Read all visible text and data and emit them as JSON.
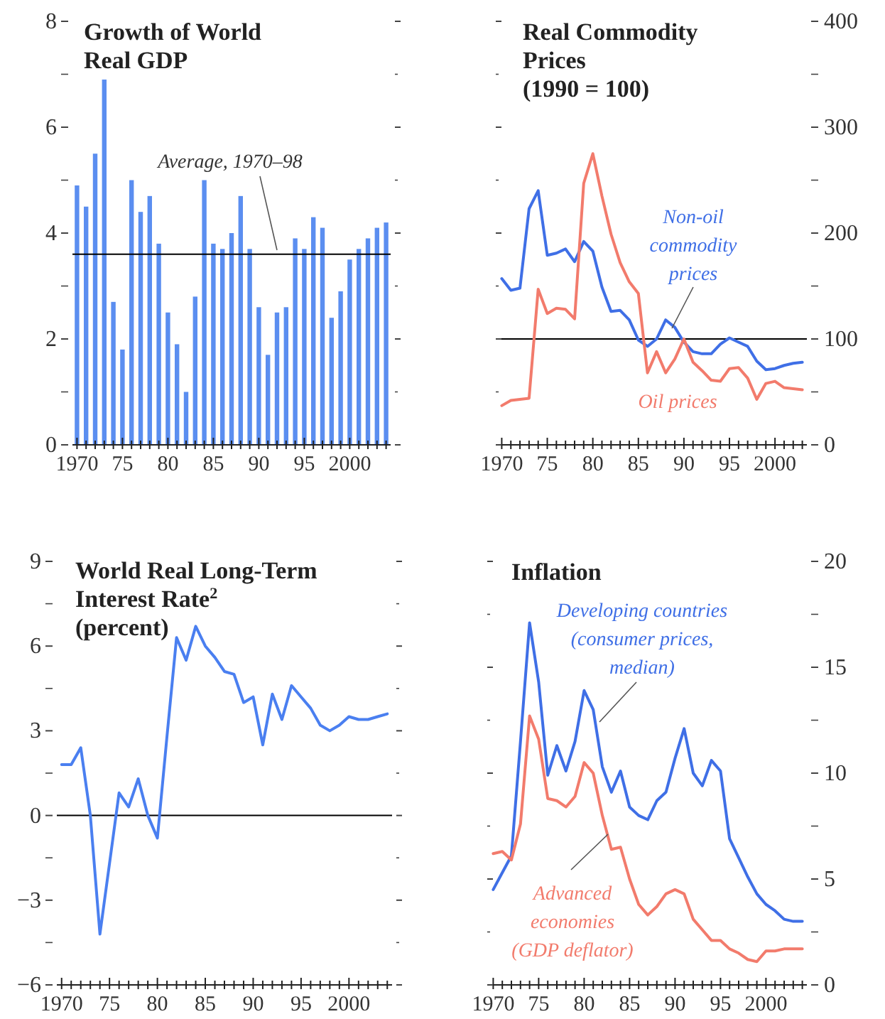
{
  "chart_data": [
    {
      "type": "bar",
      "title": "Growth of World Real GDP",
      "categories": [
        "1970",
        null,
        null,
        null,
        null,
        "75",
        null,
        null,
        null,
        null,
        "80",
        null,
        null,
        null,
        null,
        "85",
        null,
        null,
        null,
        null,
        "90",
        null,
        null,
        null,
        null,
        "95",
        null,
        null,
        null,
        null,
        "2000",
        null,
        null,
        null,
        null
      ],
      "values": [
        4.9,
        4.5,
        5.5,
        6.9,
        2.7,
        1.8,
        5.0,
        4.4,
        4.7,
        3.8,
        2.5,
        1.9,
        1.0,
        2.8,
        5.0,
        3.8,
        3.7,
        4.0,
        4.7,
        3.7,
        2.6,
        1.7,
        2.5,
        2.6,
        3.9,
        3.7,
        4.3,
        4.1,
        2.4,
        2.9,
        3.5,
        3.7,
        3.9,
        4.1,
        4.2
      ],
      "color": "#5b8ef0",
      "ylim": [
        0,
        8
      ],
      "yticks": [
        0,
        {
          "value": 1,
          "label": null
        },
        2,
        {
          "value": 3,
          "label": null
        },
        4,
        {
          "value": 5,
          "label": null
        },
        6,
        {
          "value": 7,
          "label": null
        },
        8
      ],
      "ref_lines": [
        {
          "axis": "y",
          "value": 3.6,
          "label": "Average, 1970–98"
        }
      ]
    },
    {
      "type": "line",
      "title": "Real Commodity Prices",
      "subtitle": "(1990 = 100)",
      "categories": [
        "1970",
        null,
        null,
        null,
        null,
        "75",
        null,
        null,
        null,
        null,
        "80",
        null,
        null,
        null,
        null,
        "85",
        null,
        null,
        null,
        null,
        "90",
        null,
        null,
        null,
        null,
        "95",
        null,
        null,
        null,
        null,
        "2000",
        null,
        null,
        null
      ],
      "series": [
        {
          "name": "Non-oil commodity prices",
          "color": "#3f6fe6",
          "axis": "y2",
          "values": [
            157,
            146,
            148,
            223,
            240,
            179,
            181,
            185,
            173,
            192,
            183,
            149,
            126,
            127,
            118,
            99,
            93,
            100,
            118,
            111,
            97,
            88,
            86,
            86,
            95,
            101,
            97,
            93,
            79,
            71,
            72,
            75,
            77,
            78
          ]
        },
        {
          "name": "Oil prices",
          "color": "#f27b6c",
          "axis": "y2",
          "values": [
            37,
            42,
            43,
            44,
            147,
            124,
            129,
            128,
            119,
            247,
            275,
            235,
            199,
            172,
            154,
            143,
            68,
            88,
            68,
            81,
            100,
            78,
            70,
            61,
            60,
            72,
            73,
            63,
            43,
            58,
            60,
            54,
            53,
            52
          ]
        }
      ],
      "y2lim": [
        0,
        400
      ],
      "y2ticks": [
        0,
        {
          "value": 50,
          "label": null
        },
        100,
        {
          "value": 150,
          "label": null
        },
        200,
        {
          "value": 250,
          "label": null
        },
        300,
        {
          "value": 350,
          "label": null
        },
        400
      ],
      "ref_lines": [
        {
          "axis": "y2",
          "value": 100
        }
      ]
    },
    {
      "type": "line",
      "title": "World Real Long-Term Interest Rate$^{2}$",
      "subtitle": "(percent)",
      "categories": [
        "1970",
        null,
        null,
        null,
        null,
        "75",
        null,
        null,
        null,
        null,
        "80",
        null,
        null,
        null,
        null,
        "85",
        null,
        null,
        null,
        null,
        "90",
        null,
        null,
        null,
        null,
        "95",
        null,
        null,
        null,
        null,
        "2000",
        null,
        null,
        null,
        null
      ],
      "series": [
        {
          "color": "#4a7ff0",
          "values": [
            1.8,
            1.8,
            2.4,
            0.0,
            -4.2,
            -1.7,
            0.8,
            0.3,
            1.3,
            0.0,
            -0.8,
            2.8,
            6.3,
            5.5,
            6.7,
            6.0,
            5.6,
            5.1,
            5.0,
            4.0,
            4.2,
            2.5,
            4.3,
            3.4,
            4.6,
            4.2,
            3.8,
            3.2,
            3.0,
            3.2,
            3.5,
            3.4,
            3.4,
            3.5,
            3.6
          ]
        }
      ],
      "ylim": [
        -6,
        9
      ],
      "yticks": [
        {
          "value": -6,
          "label": "−6"
        },
        {
          "value": -4.5,
          "label": null
        },
        {
          "value": -3,
          "label": "−3"
        },
        {
          "value": -1.5,
          "label": null
        },
        0,
        {
          "value": 1.5,
          "label": null
        },
        3,
        {
          "value": 4.5,
          "label": null
        },
        6,
        {
          "value": 7.5,
          "label": null
        },
        9
      ],
      "ref_lines": [
        {
          "axis": "y",
          "value": 0
        }
      ]
    },
    {
      "type": "line",
      "title": "Inflation",
      "categories": [
        "1970",
        null,
        null,
        null,
        null,
        "75",
        null,
        null,
        null,
        null,
        "80",
        null,
        null,
        null,
        null,
        "85",
        null,
        null,
        null,
        null,
        "90",
        null,
        null,
        null,
        null,
        "95",
        null,
        null,
        null,
        null,
        "2000",
        null,
        null,
        null,
        null
      ],
      "series": [
        {
          "name": "Developing countries (consumer prices, median)",
          "color": "#3f6fe6",
          "axis": "y2",
          "values": [
            4.5,
            5.3,
            6.1,
            11.5,
            17.1,
            14.3,
            9.9,
            11.3,
            10.1,
            11.5,
            13.9,
            13.0,
            10.3,
            9.1,
            10.1,
            8.4,
            8.0,
            7.8,
            8.7,
            9.1,
            10.7,
            12.1,
            10.0,
            9.4,
            10.6,
            10.1,
            6.9,
            6.0,
            5.1,
            4.3,
            3.8,
            3.5,
            3.1,
            3.0,
            3.0
          ]
        },
        {
          "name": "Advanced economies (GDP deflator)",
          "color": "#f27b6c",
          "axis": "y2",
          "values": [
            6.2,
            6.3,
            5.9,
            7.6,
            12.7,
            11.6,
            8.8,
            8.7,
            8.4,
            8.9,
            10.5,
            10.0,
            8.0,
            6.4,
            6.5,
            5.0,
            3.8,
            3.3,
            3.7,
            4.3,
            4.5,
            4.3,
            3.1,
            2.6,
            2.1,
            2.1,
            1.7,
            1.5,
            1.2,
            1.1,
            1.6,
            1.6,
            1.7,
            1.7,
            1.7
          ]
        }
      ],
      "y2lim": [
        0,
        20
      ],
      "y2ticks": [
        0,
        {
          "value": 2.5,
          "label": null
        },
        5,
        {
          "value": 7.5,
          "label": null
        },
        10,
        {
          "value": 12.5,
          "label": null
        },
        15,
        {
          "value": 17.5,
          "label": null
        },
        20
      ]
    }
  ]
}
